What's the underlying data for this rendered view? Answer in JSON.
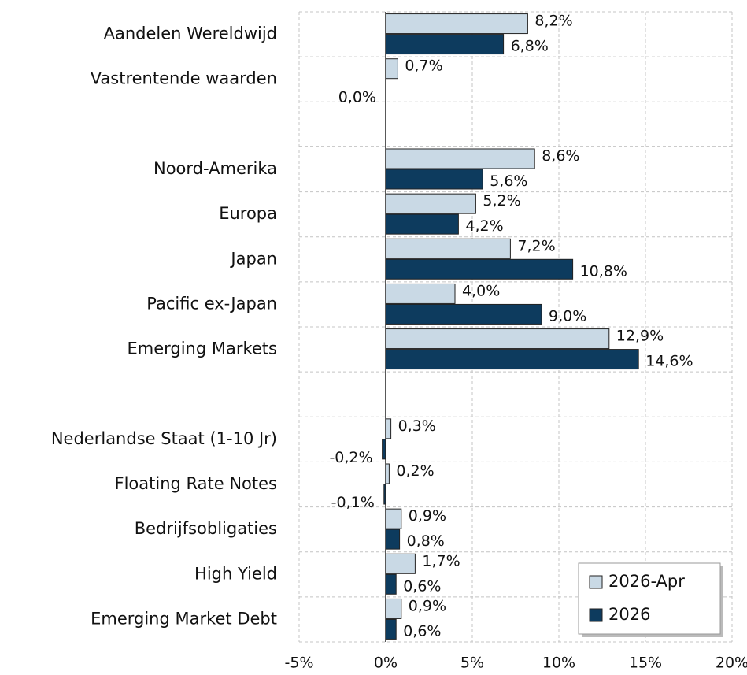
{
  "chart_data": {
    "type": "hbar",
    "categories": [
      "Aandelen Wereldwijd",
      "Vastrentende waarden",
      null,
      "Noord-Amerika",
      "Europa",
      "Japan",
      "Pacific ex-Japan",
      "Emerging Markets",
      null,
      "Nederlandse Staat (1-10 Jr)",
      "Floating Rate Notes",
      "Bedrijfsobligaties",
      "High Yield",
      "Emerging Market Debt"
    ],
    "series": [
      {
        "name": "2026-Apr",
        "color": "#c9d9e5",
        "values": [
          8.2,
          0.7,
          null,
          8.6,
          5.2,
          7.2,
          4.0,
          12.9,
          null,
          0.3,
          0.2,
          0.9,
          1.7,
          0.9
        ],
        "value_labels": [
          "8,2%",
          "0,7%",
          null,
          "8,6%",
          "5,2%",
          "7,2%",
          "4,0%",
          "12,9%",
          null,
          "0,3%",
          "0,2%",
          "0,9%",
          "1,7%",
          "0,9%"
        ]
      },
      {
        "name": "2026",
        "color": "#0d3b5e",
        "values": [
          6.8,
          0.0,
          null,
          5.6,
          4.2,
          10.8,
          9.0,
          14.6,
          null,
          -0.2,
          -0.1,
          0.8,
          0.6,
          0.6
        ],
        "value_labels": [
          "6,8%",
          "0,0%",
          null,
          "5,6%",
          "4,2%",
          "10,8%",
          "9,0%",
          "14,6%",
          null,
          "-0,2%",
          "-0,1%",
          "0,8%",
          "0,6%",
          "0,6%"
        ]
      }
    ],
    "xlim": [
      -5,
      20
    ],
    "xticks": [
      {
        "value": -5,
        "label": "-5%"
      },
      {
        "value": 0,
        "label": "0%"
      },
      {
        "value": 5,
        "label": "5%"
      },
      {
        "value": 10,
        "label": "10%"
      },
      {
        "value": 15,
        "label": "15%"
      },
      {
        "value": 20,
        "label": "20%"
      }
    ],
    "grid": true,
    "legend": "lower right"
  }
}
